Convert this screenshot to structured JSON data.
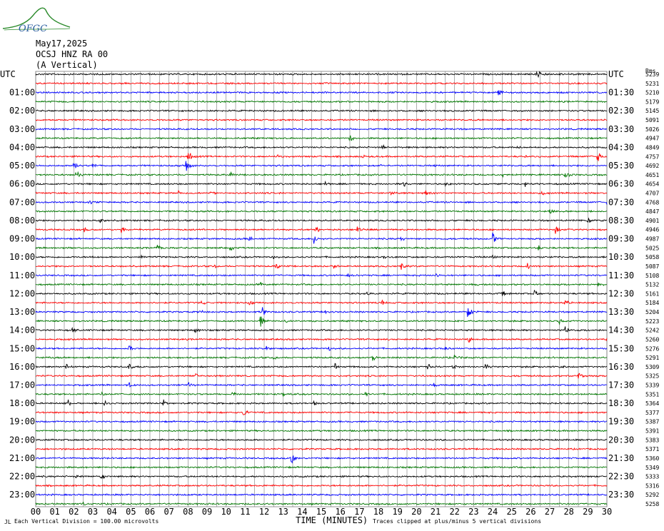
{
  "header": {
    "date": "May17,2025",
    "station": "OCSJ HNZ RA 00",
    "component": "(A Vertical)",
    "logo_text": "OFGC"
  },
  "axis_titles": {
    "left_utc": "UTC",
    "right_utc": "UTC",
    "right_rms": "Rms"
  },
  "footer": {
    "scale_note": "Each Vertical Division =  100.00 microvolts",
    "xlabel": "TIME (MINUTES)",
    "clip_note": "Traces clipped at plus/minus 5 vertical divisions",
    "corner_mark": "JL"
  },
  "colors": {
    "trace_cycle": [
      "#000000",
      "#ff0000",
      "#0000ff",
      "#007700"
    ],
    "grid": "#7a7a7a"
  },
  "chart_data": {
    "type": "line",
    "title": "OCSJ HNZ RA 00 (A Vertical)",
    "xlabel": "TIME (MINUTES)",
    "x_ticks": [
      "00",
      "01",
      "02",
      "03",
      "04",
      "05",
      "06",
      "07",
      "08",
      "09",
      "10",
      "11",
      "12",
      "13",
      "14",
      "15",
      "16",
      "17",
      "18",
      "19",
      "20",
      "21",
      "22",
      "23",
      "24",
      "25",
      "26",
      "27",
      "28",
      "29",
      "30"
    ],
    "xlim": [
      0,
      30
    ],
    "left_labels": [
      "UTC",
      "01:00",
      "02:00",
      "03:00",
      "04:00",
      "05:00",
      "06:00",
      "07:00",
      "08:00",
      "09:00",
      "10:00",
      "11:00",
      "12:00",
      "13:00",
      "14:00",
      "15:00",
      "16:00",
      "17:00",
      "18:00",
      "19:00",
      "20:00",
      "21:00",
      "22:00",
      "23:00"
    ],
    "right_labels": [
      "UTC",
      "01:30",
      "02:30",
      "03:30",
      "04:30",
      "05:30",
      "06:30",
      "07:30",
      "08:30",
      "09:30",
      "10:30",
      "11:30",
      "12:30",
      "13:30",
      "14:30",
      "15:30",
      "16:30",
      "17:30",
      "18:30",
      "19:30",
      "20:30",
      "21:30",
      "22:30",
      "23:30"
    ],
    "rms_values": [
      "5239",
      "5231",
      "5210",
      "5179",
      "5145",
      "5091",
      "5026",
      "4947",
      "4849",
      "4757",
      "4692",
      "4651",
      "4654",
      "4707",
      "4768",
      "4847",
      "4901",
      "4946",
      "4987",
      "5025",
      "5058",
      "5087",
      "5108",
      "5132",
      "5161",
      "5184",
      "5204",
      "5223",
      "5242",
      "5260",
      "5276",
      "5291",
      "5309",
      "5325",
      "5339",
      "5351",
      "5364",
      "5377",
      "5387",
      "5391",
      "5383",
      "5371",
      "5360",
      "5349",
      "5333",
      "5316",
      "5292",
      "5258"
    ],
    "trace_count": 48,
    "events": [
      [
        0,
        26.3,
        10
      ],
      [
        2,
        24.3,
        6
      ],
      [
        7,
        16.5,
        5
      ],
      [
        8,
        18.2,
        3
      ],
      [
        8,
        25.2,
        3
      ],
      [
        9,
        8.0,
        9
      ],
      [
        9,
        12.7,
        3
      ],
      [
        9,
        17.2,
        3
      ],
      [
        9,
        25.7,
        3
      ],
      [
        9,
        29.5,
        10
      ],
      [
        10,
        2.0,
        8
      ],
      [
        10,
        3.0,
        4
      ],
      [
        10,
        7.9,
        9
      ],
      [
        10,
        18.1,
        3
      ],
      [
        10,
        21.0,
        4
      ],
      [
        11,
        2.1,
        12
      ],
      [
        11,
        10.2,
        5
      ],
      [
        11,
        24.5,
        3
      ],
      [
        11,
        27.8,
        10
      ],
      [
        12,
        15.2,
        4
      ],
      [
        12,
        19.3,
        5
      ],
      [
        12,
        21.5,
        3
      ],
      [
        12,
        25.7,
        4
      ],
      [
        13,
        7.5,
        4
      ],
      [
        13,
        9.2,
        3
      ],
      [
        13,
        18.6,
        4
      ],
      [
        13,
        20.5,
        5
      ],
      [
        13,
        26.6,
        5
      ],
      [
        14,
        2.8,
        3
      ],
      [
        14,
        30.0,
        4
      ],
      [
        15,
        27.0,
        5
      ],
      [
        16,
        3.4,
        5
      ],
      [
        16,
        29.0,
        5
      ],
      [
        17,
        2.5,
        5
      ],
      [
        17,
        4.5,
        6
      ],
      [
        17,
        14.7,
        5
      ],
      [
        17,
        16.9,
        6
      ],
      [
        17,
        27.3,
        6
      ],
      [
        18,
        11.2,
        4
      ],
      [
        18,
        14.6,
        7
      ],
      [
        18,
        19.2,
        4
      ],
      [
        18,
        24.0,
        10
      ],
      [
        19,
        6.4,
        7
      ],
      [
        19,
        10.2,
        4
      ],
      [
        19,
        26.4,
        5
      ],
      [
        20,
        3.0,
        3
      ],
      [
        20,
        5.5,
        3
      ],
      [
        20,
        12.5,
        3
      ],
      [
        20,
        18.3,
        3
      ],
      [
        20,
        24.0,
        3
      ],
      [
        21,
        9.4,
        4
      ],
      [
        21,
        12.6,
        5
      ],
      [
        21,
        15.6,
        4
      ],
      [
        21,
        19.2,
        6
      ],
      [
        21,
        25.8,
        6
      ],
      [
        22,
        16.4,
        3
      ],
      [
        22,
        21.0,
        3
      ],
      [
        23,
        11.8,
        4
      ],
      [
        23,
        23.0,
        4
      ],
      [
        23,
        29.5,
        4
      ],
      [
        24,
        17.4,
        5
      ],
      [
        24,
        24.5,
        5
      ],
      [
        24,
        26.2,
        6
      ],
      [
        25,
        8.7,
        5
      ],
      [
        25,
        11.2,
        4
      ],
      [
        25,
        18.2,
        4
      ],
      [
        25,
        27.8,
        5
      ],
      [
        26,
        8.6,
        4
      ],
      [
        26,
        11.9,
        10
      ],
      [
        26,
        15.2,
        4
      ],
      [
        26,
        22.7,
        14
      ],
      [
        27,
        11.8,
        10
      ],
      [
        27,
        13.1,
        4
      ],
      [
        27,
        27.5,
        4
      ],
      [
        28,
        1.9,
        4
      ],
      [
        28,
        8.3,
        5
      ],
      [
        28,
        27.8,
        6
      ],
      [
        29,
        22.7,
        6
      ],
      [
        29,
        30.0,
        3
      ],
      [
        30,
        4.9,
        5
      ],
      [
        30,
        12.1,
        4
      ],
      [
        30,
        15.4,
        4
      ],
      [
        30,
        21.5,
        4
      ],
      [
        31,
        0.7,
        3
      ],
      [
        31,
        12.5,
        4
      ],
      [
        31,
        17.7,
        5
      ],
      [
        31,
        22.0,
        5
      ],
      [
        32,
        1.6,
        5
      ],
      [
        32,
        4.9,
        5
      ],
      [
        32,
        15.7,
        6
      ],
      [
        32,
        20.6,
        5
      ],
      [
        32,
        21.9,
        6
      ],
      [
        32,
        23.6,
        5
      ],
      [
        32,
        27.5,
        4
      ],
      [
        33,
        8.4,
        4
      ],
      [
        33,
        28.5,
        6
      ],
      [
        34,
        4.9,
        4
      ],
      [
        34,
        8.0,
        4
      ],
      [
        34,
        20.9,
        4
      ],
      [
        35,
        3.5,
        4
      ],
      [
        35,
        10.3,
        5
      ],
      [
        35,
        12.9,
        6
      ],
      [
        35,
        17.3,
        4
      ],
      [
        36,
        1.7,
        5
      ],
      [
        36,
        3.6,
        4
      ],
      [
        36,
        6.7,
        6
      ],
      [
        36,
        14.6,
        4
      ],
      [
        37,
        10.9,
        7
      ],
      [
        42,
        13.4,
        12
      ],
      [
        44,
        2.1,
        3
      ],
      [
        44,
        3.4,
        5
      ],
      [
        47,
        2.5,
        5
      ]
    ]
  }
}
